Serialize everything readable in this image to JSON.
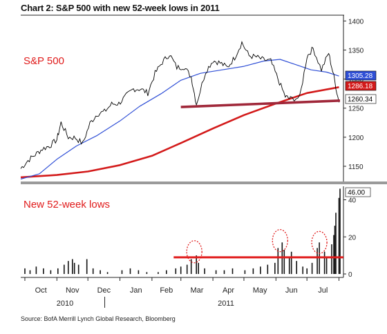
{
  "title": "Chart 2: S&P 500 with new 52-week lows in 2011",
  "source": "Source: BofA Merrill Lynch Global Research, Bloomberg",
  "colors": {
    "price": "#000000",
    "ma50": "#2f4fd6",
    "ma200": "#d31a1a",
    "support": "#a0283a",
    "threshold": "#e01b1b",
    "lows": "#111111",
    "accent_label": "#e01b1b"
  },
  "chart_data": [
    {
      "type": "line",
      "title": "S&P 500",
      "panel_label": "S&P 500",
      "x_months": [
        "Oct",
        "Nov",
        "Dec",
        "Jan",
        "Feb",
        "Mar",
        "Apr",
        "May",
        "Jun",
        "Jul"
      ],
      "year_labels": [
        "2010",
        "2011"
      ],
      "ylim": [
        1125,
        1410
      ],
      "yticks": [
        1150,
        1200,
        1250,
        1300,
        1350,
        1400
      ],
      "ytick_labels": [
        "1150",
        "1200",
        "1250",
        "1300",
        "1350",
        "1400"
      ],
      "x_start": "2010-09-27",
      "x_end": "2011-08-02",
      "series": [
        {
          "key": "price",
          "points": [
            [
              "2010-09-27",
              1146
            ],
            [
              "2010-10-04",
              1160
            ],
            [
              "2010-10-11",
              1170
            ],
            [
              "2010-10-18",
              1180
            ],
            [
              "2010-10-25",
              1185
            ],
            [
              "2010-11-01",
              1196
            ],
            [
              "2010-11-05",
              1225
            ],
            [
              "2010-11-12",
              1200
            ],
            [
              "2010-11-19",
              1199
            ],
            [
              "2010-11-26",
              1189
            ],
            [
              "2010-12-03",
              1224
            ],
            [
              "2010-12-10",
              1240
            ],
            [
              "2010-12-17",
              1244
            ],
            [
              "2010-12-24",
              1257
            ],
            [
              "2010-12-31",
              1258
            ],
            [
              "2011-01-07",
              1271
            ],
            [
              "2011-01-14",
              1283
            ],
            [
              "2011-01-21",
              1283
            ],
            [
              "2011-01-28",
              1276
            ],
            [
              "2011-02-04",
              1310
            ],
            [
              "2011-02-11",
              1329
            ],
            [
              "2011-02-18",
              1343
            ],
            [
              "2011-02-25",
              1320
            ],
            [
              "2011-03-04",
              1321
            ],
            [
              "2011-03-11",
              1304
            ],
            [
              "2011-03-16",
              1257
            ],
            [
              "2011-03-25",
              1313
            ],
            [
              "2011-04-01",
              1332
            ],
            [
              "2011-04-08",
              1328
            ],
            [
              "2011-04-15",
              1320
            ],
            [
              "2011-04-22",
              1337
            ],
            [
              "2011-04-29",
              1363
            ],
            [
              "2011-05-06",
              1340
            ],
            [
              "2011-05-13",
              1338
            ],
            [
              "2011-05-20",
              1333
            ],
            [
              "2011-05-27",
              1331
            ],
            [
              "2011-06-03",
              1300
            ],
            [
              "2011-06-10",
              1270
            ],
            [
              "2011-06-15",
              1266
            ],
            [
              "2011-06-24",
              1268
            ],
            [
              "2011-07-01",
              1339
            ],
            [
              "2011-07-07",
              1353
            ],
            [
              "2011-07-15",
              1316
            ],
            [
              "2011-07-22",
              1345
            ],
            [
              "2011-07-27",
              1305
            ],
            [
              "2011-08-01",
              1260
            ]
          ]
        },
        {
          "key": "ma50",
          "name": "",
          "points": [
            [
              "2010-09-27",
              1128
            ],
            [
              "2010-10-15",
              1137
            ],
            [
              "2010-11-01",
              1162
            ],
            [
              "2010-11-20",
              1185
            ],
            [
              "2010-12-10",
              1203
            ],
            [
              "2011-01-01",
              1228
            ],
            [
              "2011-01-20",
              1253
            ],
            [
              "2011-02-10",
              1275
            ],
            [
              "2011-03-01",
              1298
            ],
            [
              "2011-03-20",
              1310
            ],
            [
              "2011-04-10",
              1316
            ],
            [
              "2011-05-01",
              1322
            ],
            [
              "2011-05-20",
              1331
            ],
            [
              "2011-06-05",
              1334
            ],
            [
              "2011-06-20",
              1325
            ],
            [
              "2011-07-05",
              1316
            ],
            [
              "2011-07-20",
              1312
            ],
            [
              "2011-08-01",
              1305.28
            ]
          ]
        },
        {
          "key": "ma200",
          "name": "",
          "points": [
            [
              "2010-09-27",
              1131
            ],
            [
              "2010-11-01",
              1135
            ],
            [
              "2010-12-01",
              1141
            ],
            [
              "2011-01-01",
              1152
            ],
            [
              "2011-02-01",
              1168
            ],
            [
              "2011-03-01",
              1190
            ],
            [
              "2011-04-01",
              1215
            ],
            [
              "2011-05-01",
              1238
            ],
            [
              "2011-06-01",
              1258
            ],
            [
              "2011-07-01",
              1276
            ],
            [
              "2011-08-01",
              1286.18
            ]
          ]
        },
        {
          "key": "support",
          "name": "",
          "points": [
            [
              "2011-03-01",
              1252
            ],
            [
              "2011-08-02",
              1263
            ]
          ]
        }
      ],
      "end_labels": [
        {
          "value": 1305.28,
          "text": "1305.28",
          "bg": "#2f4fd6",
          "fg": "#ffffff"
        },
        {
          "value": 1286.18,
          "text": "1286.18",
          "bg": "#d31a1a",
          "fg": "#ffffff"
        },
        {
          "value": 1260.34,
          "text": "1260.34",
          "bg": "#ffffff",
          "fg": "#000000"
        }
      ]
    },
    {
      "type": "bar",
      "title": "New 52-week lows",
      "panel_label": "New 52-week lows",
      "ylim": [
        0,
        48
      ],
      "yticks": [
        0,
        20,
        40
      ],
      "ytick_labels": [
        "0",
        "20",
        "40"
      ],
      "threshold": 9,
      "end_label": {
        "value": 46,
        "text": "46.00"
      },
      "bars": [
        [
          "2010-10-01",
          3
        ],
        [
          "2010-10-06",
          2
        ],
        [
          "2010-10-12",
          4
        ],
        [
          "2010-10-19",
          3
        ],
        [
          "2010-10-26",
          2
        ],
        [
          "2010-11-02",
          3
        ],
        [
          "2010-11-08",
          5
        ],
        [
          "2010-11-12",
          7
        ],
        [
          "2010-11-16",
          8
        ],
        [
          "2010-11-18",
          6
        ],
        [
          "2010-11-22",
          5
        ],
        [
          "2010-11-30",
          8
        ],
        [
          "2010-12-06",
          3
        ],
        [
          "2010-12-13",
          2
        ],
        [
          "2010-12-20",
          1
        ],
        [
          "2011-01-03",
          2
        ],
        [
          "2011-01-11",
          3
        ],
        [
          "2011-01-19",
          2
        ],
        [
          "2011-01-27",
          1
        ],
        [
          "2011-02-07",
          1
        ],
        [
          "2011-02-15",
          2
        ],
        [
          "2011-02-24",
          3
        ],
        [
          "2011-03-01",
          4
        ],
        [
          "2011-03-07",
          5
        ],
        [
          "2011-03-11",
          8
        ],
        [
          "2011-03-16",
          10
        ],
        [
          "2011-03-18",
          6
        ],
        [
          "2011-03-24",
          3
        ],
        [
          "2011-04-04",
          2
        ],
        [
          "2011-04-12",
          2
        ],
        [
          "2011-04-20",
          3
        ],
        [
          "2011-05-02",
          2
        ],
        [
          "2011-05-10",
          3
        ],
        [
          "2011-05-17",
          4
        ],
        [
          "2011-05-24",
          5
        ],
        [
          "2011-05-31",
          6
        ],
        [
          "2011-06-03",
          14
        ],
        [
          "2011-06-07",
          17
        ],
        [
          "2011-06-09",
          13
        ],
        [
          "2011-06-14",
          9
        ],
        [
          "2011-06-16",
          12
        ],
        [
          "2011-06-21",
          7
        ],
        [
          "2011-06-27",
          4
        ],
        [
          "2011-07-01",
          3
        ],
        [
          "2011-07-06",
          6
        ],
        [
          "2011-07-11",
          14
        ],
        [
          "2011-07-13",
          17
        ],
        [
          "2011-07-18",
          12
        ],
        [
          "2011-07-20",
          9
        ],
        [
          "2011-07-25",
          16
        ],
        [
          "2011-07-27",
          21
        ],
        [
          "2011-07-28",
          26
        ],
        [
          "2011-07-29",
          33
        ],
        [
          "2011-08-01",
          41
        ],
        [
          "2011-08-02",
          46
        ]
      ],
      "highlights": [
        {
          "date": "2011-03-14",
          "value": 12
        },
        {
          "date": "2011-06-05",
          "value": 18
        },
        {
          "date": "2011-07-13",
          "value": 17
        }
      ]
    }
  ]
}
